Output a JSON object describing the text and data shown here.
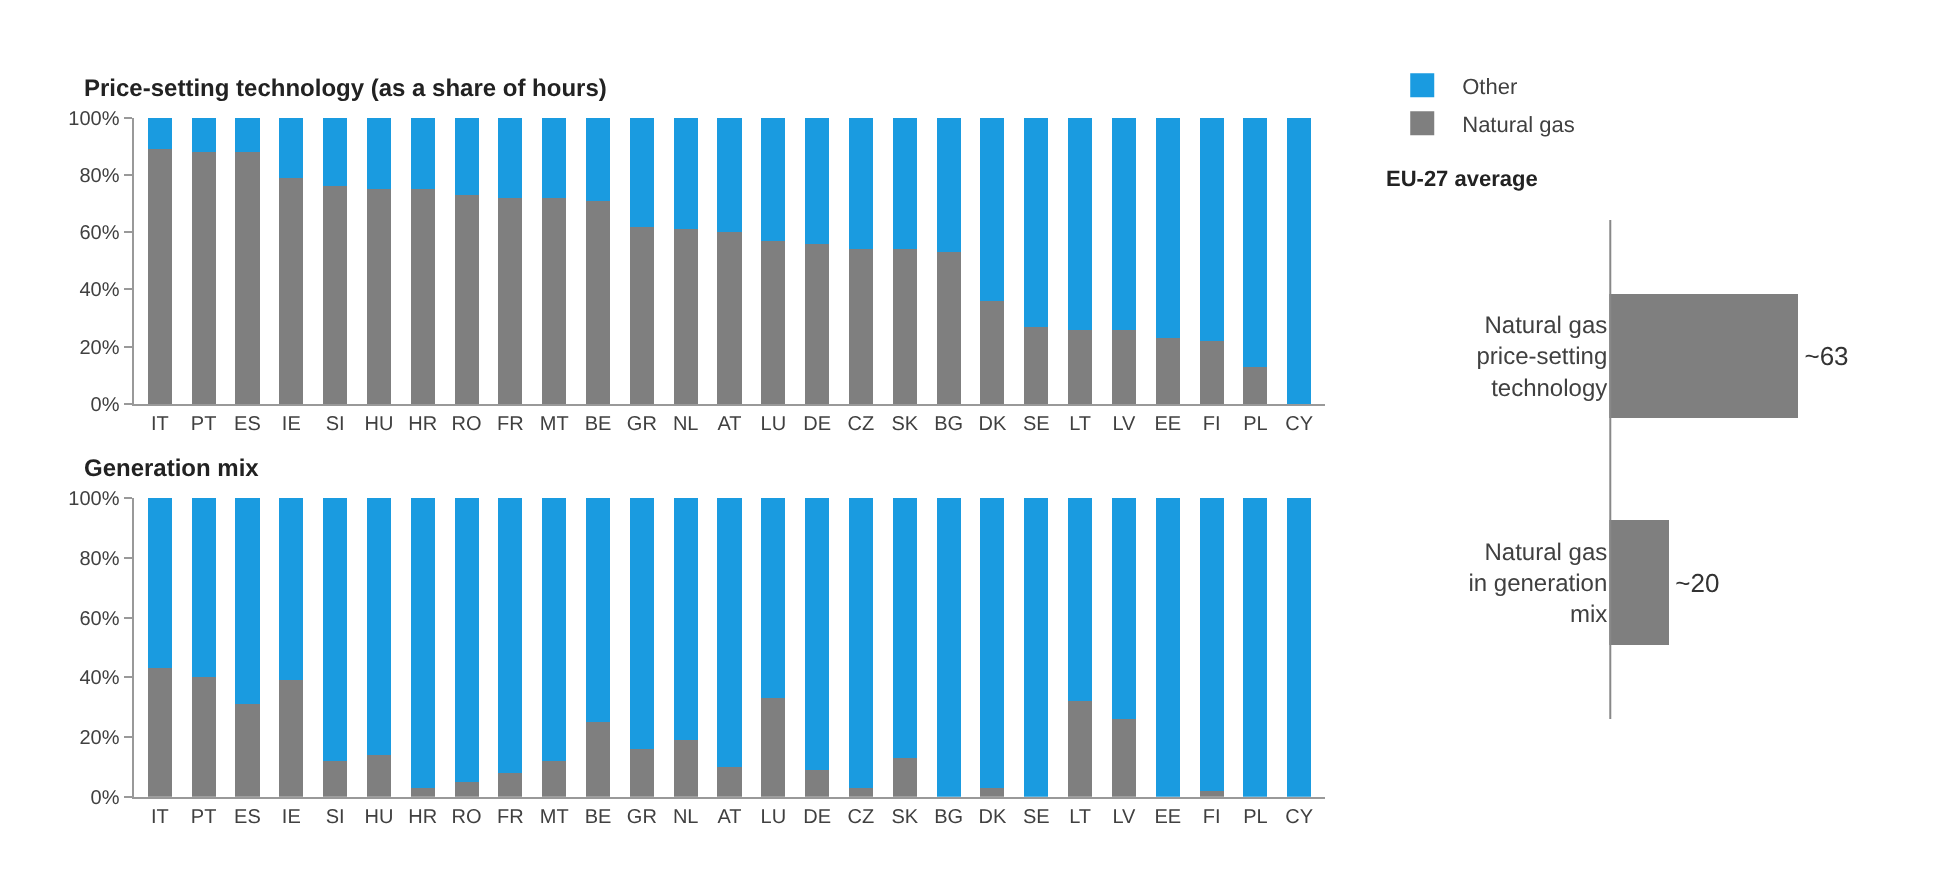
{
  "chart_data": [
    {
      "type": "bar",
      "title": "Price-setting technology (as a share of hours)",
      "stacked": true,
      "legend": "top right",
      "categories": [
        "IT",
        "PT",
        "ES",
        "IE",
        "SI",
        "HU",
        "HR",
        "RO",
        "FR",
        "MT",
        "BE",
        "GR",
        "NL",
        "AT",
        "LU",
        "DE",
        "CZ",
        "SK",
        "BG",
        "DK",
        "SE",
        "LT",
        "LV",
        "EE",
        "FI",
        "PL",
        "CY"
      ],
      "series": [
        {
          "name": "Natural gas",
          "color": "#7f7f7f",
          "values": [
            89,
            88,
            88,
            79,
            76,
            75,
            75,
            73,
            72,
            72,
            71,
            62,
            61,
            60,
            57,
            56,
            54,
            54,
            53,
            36,
            27,
            26,
            26,
            23,
            22,
            13,
            0
          ]
        },
        {
          "name": "Other",
          "color": "#1a9be0",
          "values": [
            11,
            12,
            12,
            21,
            24,
            25,
            25,
            27,
            28,
            28,
            29,
            38,
            39,
            40,
            43,
            44,
            46,
            46,
            47,
            64,
            73,
            74,
            74,
            77,
            78,
            87,
            100
          ]
        }
      ],
      "ylim": [
        0,
        100
      ],
      "yticks": [
        {
          "value": 0,
          "label": "0%"
        },
        {
          "value": 20,
          "label": "20%"
        },
        {
          "value": 40,
          "label": "40%"
        },
        {
          "value": 60,
          "label": "60%"
        },
        {
          "value": 80,
          "label": "80%"
        },
        {
          "value": 100,
          "label": "100%"
        }
      ]
    },
    {
      "type": "bar",
      "title": "Generation mix",
      "stacked": true,
      "categories": [
        "IT",
        "PT",
        "ES",
        "IE",
        "SI",
        "HU",
        "HR",
        "RO",
        "FR",
        "MT",
        "BE",
        "GR",
        "NL",
        "AT",
        "LU",
        "DE",
        "CZ",
        "SK",
        "BG",
        "DK",
        "SE",
        "LT",
        "LV",
        "EE",
        "FI",
        "PL",
        "CY"
      ],
      "series": [
        {
          "color": "#7f7f7f",
          "values": [
            43,
            40,
            31,
            39,
            12,
            14,
            3,
            5,
            8,
            12,
            25,
            16,
            19,
            10,
            33,
            9,
            3,
            13,
            0,
            3,
            0,
            32,
            26,
            0,
            2,
            0,
            0
          ]
        },
        {
          "color": "#1a9be0",
          "values": [
            57,
            60,
            69,
            61,
            88,
            86,
            97,
            95,
            92,
            88,
            75,
            84,
            81,
            90,
            67,
            91,
            97,
            87,
            100,
            97,
            100,
            68,
            74,
            100,
            98,
            100,
            100
          ]
        }
      ],
      "ylim": [
        0,
        100
      ],
      "yticks": [
        {
          "value": 0,
          "label": "0%"
        },
        {
          "value": 20,
          "label": "20%"
        },
        {
          "value": 40,
          "label": "40%"
        },
        {
          "value": 60,
          "label": "60%"
        },
        {
          "value": 80,
          "label": "80%"
        },
        {
          "value": 100,
          "label": "100%"
        }
      ]
    },
    {
      "type": "bar",
      "title": "EU-27 average",
      "orientation": "horizontal",
      "categories": [
        "Natural gas price-setting technology",
        "Natural gas in generation mix"
      ],
      "values": [
        63,
        20
      ],
      "color": "#7f7f7f",
      "value_labels": [
        "~63",
        "~20"
      ]
    }
  ]
}
